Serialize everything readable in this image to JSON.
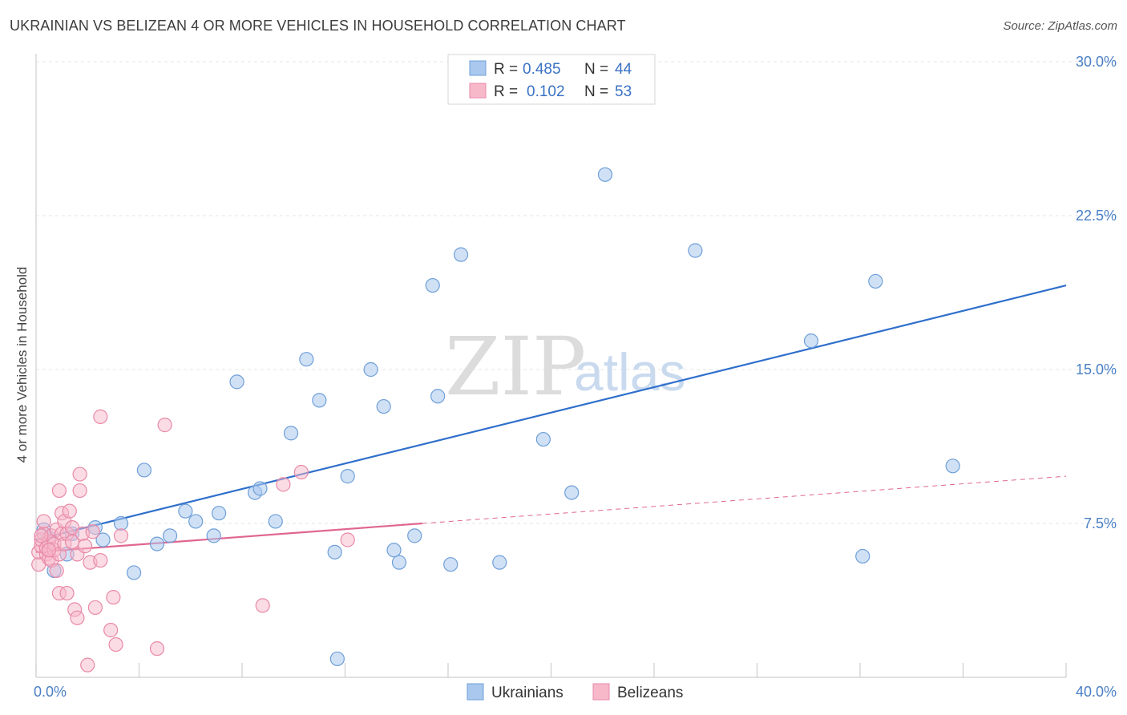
{
  "header": {
    "title": "UKRAINIAN VS BELIZEAN 4 OR MORE VEHICLES IN HOUSEHOLD CORRELATION CHART",
    "source": "Source: ZipAtlas.com"
  },
  "watermark": {
    "zip": "ZIP",
    "atlas": "atlas"
  },
  "legend": {
    "r_label": "R =",
    "n_label": "N =",
    "rows": [
      {
        "r": "0.485",
        "n": "44"
      },
      {
        "r": "0.102",
        "n": "53"
      }
    ]
  },
  "colors": {
    "ukrainians_fill": "#aac8ee",
    "ukrainians_stroke": "#6f9fd8",
    "ukrainians_line": "#2f6fcc",
    "belizeans_fill": "#f7b8ca",
    "belizeans_stroke": "#e88aa8",
    "belizeans_line": "#e06690"
  },
  "chart_data": {
    "type": "scatter",
    "title": "UKRAINIAN VS BELIZEAN 4 OR MORE VEHICLES IN HOUSEHOLD CORRELATION CHART",
    "xlabel": "",
    "ylabel": "4 or more Vehicles in Household",
    "xlim": [
      0,
      40
    ],
    "ylim": [
      0,
      30
    ],
    "x_tick_labels": [
      "0.0%",
      "40.0%"
    ],
    "y_ticks": [
      7.5,
      15.0,
      22.5,
      30.0
    ],
    "y_tick_labels": [
      "7.5%",
      "15.0%",
      "22.5%",
      "30.0%"
    ],
    "grid": true,
    "legend_position": "top-center",
    "series": [
      {
        "name": "Ukrainians",
        "r": 0.485,
        "n": 44,
        "trend": {
          "x": [
            0,
            40
          ],
          "y": [
            6.7,
            19.1
          ]
        },
        "points": [
          [
            0.3,
            7.2
          ],
          [
            0.5,
            6.8
          ],
          [
            0.7,
            5.2
          ],
          [
            1.2,
            6.0
          ],
          [
            1.4,
            7.0
          ],
          [
            2.3,
            7.3
          ],
          [
            2.6,
            6.7
          ],
          [
            3.3,
            7.5
          ],
          [
            3.8,
            5.1
          ],
          [
            4.2,
            10.1
          ],
          [
            4.7,
            6.5
          ],
          [
            5.2,
            6.9
          ],
          [
            5.8,
            8.1
          ],
          [
            6.2,
            7.6
          ],
          [
            6.9,
            6.9
          ],
          [
            7.1,
            8.0
          ],
          [
            7.8,
            14.4
          ],
          [
            8.5,
            9.0
          ],
          [
            8.7,
            9.2
          ],
          [
            9.3,
            7.6
          ],
          [
            9.9,
            11.9
          ],
          [
            10.5,
            15.5
          ],
          [
            11.0,
            13.5
          ],
          [
            11.6,
            6.1
          ],
          [
            11.7,
            0.9
          ],
          [
            12.1,
            9.8
          ],
          [
            13.0,
            15.0
          ],
          [
            13.5,
            13.2
          ],
          [
            13.9,
            6.2
          ],
          [
            14.1,
            5.6
          ],
          [
            14.7,
            6.9
          ],
          [
            15.6,
            13.7
          ],
          [
            15.4,
            19.1
          ],
          [
            16.1,
            5.5
          ],
          [
            16.5,
            20.6
          ],
          [
            18.0,
            5.6
          ],
          [
            19.7,
            11.6
          ],
          [
            20.8,
            9.0
          ],
          [
            22.1,
            24.5
          ],
          [
            25.6,
            20.8
          ],
          [
            30.1,
            16.4
          ],
          [
            32.1,
            5.9
          ],
          [
            32.6,
            19.3
          ],
          [
            35.6,
            10.3
          ]
        ]
      },
      {
        "name": "Belizeans",
        "r": 0.102,
        "n": 53,
        "trend": {
          "x": [
            0,
            15
          ],
          "y": [
            6.1,
            7.5
          ]
        },
        "trend_extended": {
          "x": [
            15,
            40
          ],
          "y": [
            7.5,
            9.8
          ]
        },
        "points": [
          [
            0.1,
            5.5
          ],
          [
            0.1,
            6.1
          ],
          [
            0.2,
            6.4
          ],
          [
            0.2,
            6.7
          ],
          [
            0.3,
            7.0
          ],
          [
            0.3,
            7.6
          ],
          [
            0.4,
            6.0
          ],
          [
            0.4,
            6.3
          ],
          [
            0.5,
            6.6
          ],
          [
            0.5,
            5.8
          ],
          [
            0.6,
            6.9
          ],
          [
            0.6,
            5.7
          ],
          [
            0.7,
            6.2
          ],
          [
            0.7,
            6.5
          ],
          [
            0.8,
            5.2
          ],
          [
            0.8,
            7.2
          ],
          [
            0.9,
            6.0
          ],
          [
            0.9,
            9.1
          ],
          [
            0.9,
            4.1
          ],
          [
            1.0,
            7.0
          ],
          [
            1.0,
            8.0
          ],
          [
            1.1,
            6.5
          ],
          [
            1.1,
            7.6
          ],
          [
            1.2,
            7.0
          ],
          [
            1.2,
            4.1
          ],
          [
            1.3,
            8.1
          ],
          [
            1.4,
            7.3
          ],
          [
            1.4,
            6.6
          ],
          [
            1.5,
            3.3
          ],
          [
            1.6,
            2.9
          ],
          [
            1.6,
            6.0
          ],
          [
            1.7,
            9.9
          ],
          [
            1.7,
            9.1
          ],
          [
            1.8,
            7.0
          ],
          [
            1.9,
            6.4
          ],
          [
            2.0,
            0.6
          ],
          [
            2.1,
            5.6
          ],
          [
            2.2,
            7.1
          ],
          [
            2.3,
            3.4
          ],
          [
            2.5,
            12.7
          ],
          [
            2.5,
            5.7
          ],
          [
            2.9,
            2.3
          ],
          [
            3.0,
            3.9
          ],
          [
            3.1,
            1.6
          ],
          [
            3.3,
            6.9
          ],
          [
            4.7,
            1.4
          ],
          [
            5.0,
            12.3
          ],
          [
            8.8,
            3.5
          ],
          [
            9.6,
            9.4
          ],
          [
            10.3,
            10.0
          ],
          [
            12.1,
            6.7
          ],
          [
            0.2,
            6.9
          ],
          [
            0.5,
            6.2
          ]
        ]
      }
    ]
  },
  "bottom_legend": [
    {
      "label": "Ukrainians"
    },
    {
      "label": "Belizeans"
    }
  ]
}
